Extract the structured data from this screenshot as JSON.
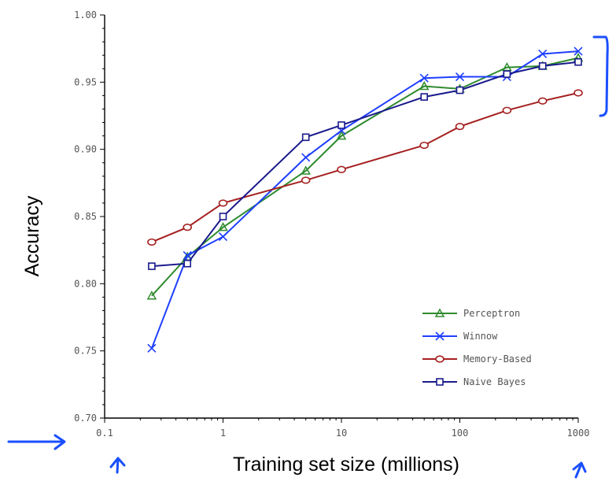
{
  "chart_data": {
    "type": "line",
    "xlabel": "Training set size (millions)",
    "ylabel": "Accuracy",
    "xscale": "log",
    "xlim": [
      0.1,
      1000
    ],
    "ylim": [
      0.7,
      1.0
    ],
    "xticks": [
      {
        "value": 0.1,
        "label": "0.1"
      },
      {
        "value": 1,
        "label": "1"
      },
      {
        "value": 10,
        "label": "10"
      },
      {
        "value": 100,
        "label": "100"
      },
      {
        "value": 1000,
        "label": "1000"
      }
    ],
    "yticks": [
      {
        "value": 0.7,
        "label": "0.70"
      },
      {
        "value": 0.75,
        "label": "0.75"
      },
      {
        "value": 0.8,
        "label": "0.80"
      },
      {
        "value": 0.85,
        "label": "0.85"
      },
      {
        "value": 0.9,
        "label": "0.90"
      },
      {
        "value": 0.95,
        "label": "0.95"
      },
      {
        "value": 1.0,
        "label": "1.00"
      }
    ],
    "grid": false,
    "legend_position": "bottom-right",
    "x": [
      0.25,
      0.5,
      1,
      5,
      10,
      50,
      100,
      250,
      500,
      1000
    ],
    "series": [
      {
        "name": "Perceptron",
        "marker": "triangle",
        "color": "#2e8b2e",
        "values": [
          0.791,
          0.82,
          0.842,
          0.884,
          0.91,
          0.947,
          0.945,
          0.961,
          0.962,
          0.968
        ]
      },
      {
        "name": "Winnow",
        "marker": "x",
        "color": "#1f3fff",
        "values": [
          0.752,
          0.821,
          0.835,
          0.894,
          0.914,
          0.953,
          0.954,
          0.954,
          0.971,
          0.973
        ]
      },
      {
        "name": "Memory-Based",
        "marker": "circle",
        "color": "#a52020",
        "values": [
          0.831,
          0.842,
          0.86,
          0.877,
          0.885,
          0.903,
          0.917,
          0.929,
          0.936,
          0.942
        ]
      },
      {
        "name": "Naive Bayes",
        "marker": "square",
        "color": "#1a1a8c",
        "values": [
          0.813,
          0.815,
          0.85,
          0.909,
          0.918,
          0.939,
          0.944,
          0.956,
          0.962,
          0.965
        ]
      }
    ]
  },
  "annotation_color": "#1a4fff"
}
